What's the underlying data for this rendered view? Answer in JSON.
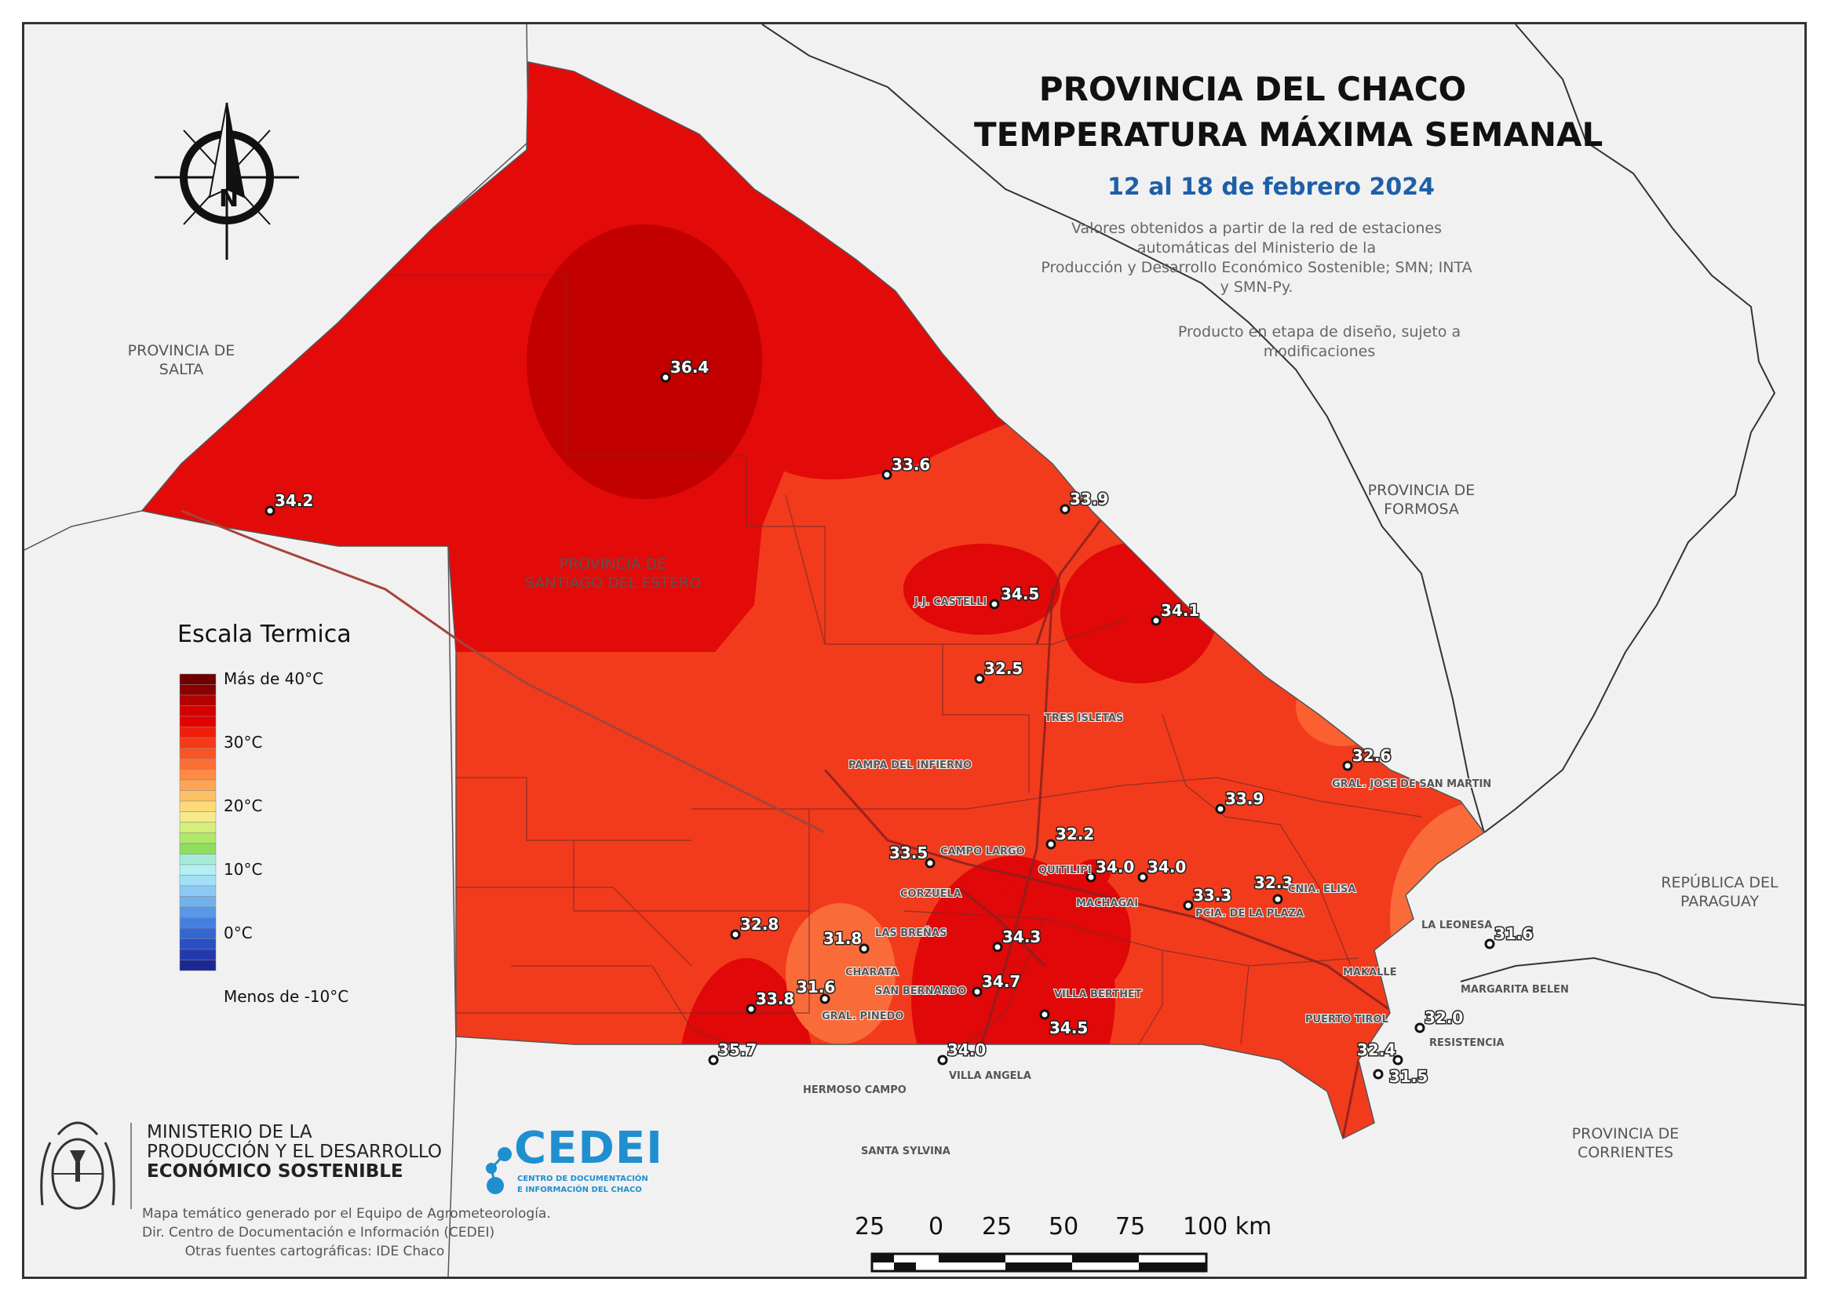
{
  "title": {
    "line1": "PROVINCIA DEL CHACO",
    "line2": "TEMPERATURA MÁXIMA SEMANAL",
    "dates": "12 al 18 de febrero 2024",
    "source_line1": "Valores obtenidos a partir de la red de estaciones automáticas del Ministerio de la",
    "source_line2": "Producción y Desarrollo Económico Sostenible; SMN; INTA y SMN-Py.",
    "disclaimer": "Producto en etapa de diseño, sujeto a modificaciones"
  },
  "regions": {
    "salta_1": "PROVINCIA DE",
    "salta_2": "SALTA",
    "santiago_1": "PROVINCIA DE",
    "santiago_2": "SANTIAGO DEL ESTERO",
    "formosa_1": "PROVINCIA DE",
    "formosa_2": "FORMOSA",
    "paraguay_1": "REPÚBLICA DEL",
    "paraguay_2": "PARAGUAY",
    "corrientes_1": "PROVINCIA DE",
    "corrientes_2": "CORRIENTES"
  },
  "compass": {
    "north_label": "N",
    "icon": "north-arrow-icon"
  },
  "legend": {
    "title": "Escala Termica",
    "labels": [
      "Más de 40°C",
      "30°C",
      "20°C",
      "10°C",
      "0°C",
      "Menos de -10°C"
    ],
    "colors": [
      "#6e0000",
      "#8b0000",
      "#b30000",
      "#d40000",
      "#e60000",
      "#f01d0a",
      "#f53a17",
      "#fa5424",
      "#fd6e35",
      "#fe8a45",
      "#fea555",
      "#fec064",
      "#fed978",
      "#f6ea8a",
      "#d6ee7a",
      "#b0e86a",
      "#8fdd5c",
      "#a8ecd8",
      "#b2f0f4",
      "#a4dff8",
      "#8cc8f4",
      "#72b1ee",
      "#5a97e6",
      "#4580df",
      "#3567d4",
      "#2a4fc4",
      "#2339ab",
      "#1c2892"
    ]
  },
  "stations": [
    {
      "label": "36.4"
    },
    {
      "label": "34.2"
    },
    {
      "label": "33.6"
    },
    {
      "label": "33.9"
    },
    {
      "label": "34.5"
    },
    {
      "label": "34.1"
    },
    {
      "label": "32.5"
    },
    {
      "label": "32.6"
    },
    {
      "label": "33.9"
    },
    {
      "label": "32.2"
    },
    {
      "label": "33.5"
    },
    {
      "label": "34.0"
    },
    {
      "label": "34.0"
    },
    {
      "label": "33.3"
    },
    {
      "label": "32.3"
    },
    {
      "label": "32.8"
    },
    {
      "label": "31.8"
    },
    {
      "label": "34.3"
    },
    {
      "label": "31.6"
    },
    {
      "label": "33.8"
    },
    {
      "label": "31.6"
    },
    {
      "label": "34.7"
    },
    {
      "label": "34.5"
    },
    {
      "label": "35.7"
    },
    {
      "label": "34.0"
    },
    {
      "label": "32.0"
    },
    {
      "label": "32.4"
    },
    {
      "label": "31.5"
    }
  ],
  "cities": [
    "J.J. CASTELLI",
    "TRES ISLETAS",
    "PAMPA DEL INFIERNO",
    "GRAL. JOSE DE SAN MARTIN",
    "CAMPO LARGO",
    "QUITILIPI",
    "MACHAGAI",
    "PCIA. DE LA PLAZA",
    "CNIA. ELISA",
    "CORZUELA",
    "LAS BREÑAS",
    "CHARATA",
    "SAN BERNARDO",
    "VILLA BERTHET",
    "GRAL. PINEDO",
    "HERMOSO CAMPO",
    "VILLA ANGELA",
    "SANTA SYLVINA",
    "LA LEONESA",
    "MAKALLE",
    "MARGARITA BELEN",
    "PUERTO TIROL",
    "RESISTENCIA"
  ],
  "ministry": {
    "line1": "MINISTERIO DE LA",
    "line2": "PRODUCCIÓN Y EL DESARROLLO",
    "line3": "ECONÓMICO SOSTENIBLE",
    "seal_icon": "argentina-seal-icon"
  },
  "cedei": {
    "name": "CEDEI",
    "sub1": "CENTRO DE DOCUMENTACIÓN",
    "sub2": "E INFORMACIÓN DEL CHACO",
    "icon": "cedei-dots-icon"
  },
  "credits": {
    "line1": "Mapa temático generado por el Equipo de Agrometeorología.",
    "line2": "Dir. Centro de Documentación e Información (CEDEI)",
    "line3": "Otras fuentes cartográficas: IDE Chaco"
  },
  "scalebar": {
    "labels": [
      "25",
      "0",
      "25",
      "50",
      "75",
      "100 km"
    ]
  }
}
